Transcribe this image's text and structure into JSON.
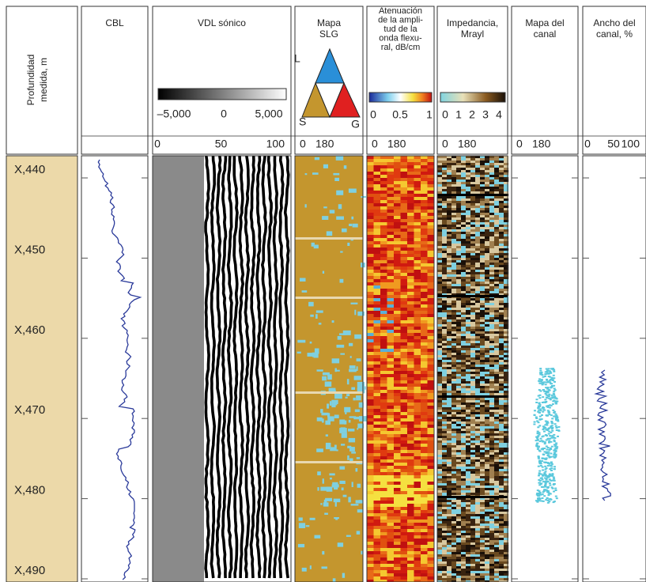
{
  "depth_track": {
    "title_lines": [
      "Profundidad",
      "medida, m"
    ]
  },
  "tracks": [
    {
      "title_lines": [
        "CBL"
      ]
    },
    {
      "title_lines": [
        "VDL sónico"
      ],
      "colorbar_labels": [
        "–5,000",
        "0",
        "5,000"
      ],
      "scale": [
        "0",
        "50",
        "100"
      ]
    },
    {
      "title_lines": [
        "Mapa",
        "SLG"
      ],
      "triangle_labels": [
        "L",
        "S",
        "G"
      ],
      "scale": [
        "0",
        "180"
      ]
    },
    {
      "title_lines": [
        "Atenuación",
        "de la ampli-",
        "tud de la",
        "onda flexu-",
        "ral, dB/cm"
      ],
      "colorbar_labels": [
        "0",
        "0.5",
        "1"
      ],
      "scale": [
        "0",
        "180"
      ]
    },
    {
      "title_lines": [
        "Impedancia,",
        "Mrayl"
      ],
      "colorbar_labels": [
        "0",
        "1",
        "2",
        "3",
        "4"
      ],
      "scale": [
        "0",
        "180"
      ]
    },
    {
      "title_lines": [
        "Mapa del",
        "canal"
      ],
      "scale": [
        "0",
        "180"
      ]
    },
    {
      "title_lines": [
        "Ancho del",
        "canal, %"
      ],
      "scale": [
        "0",
        "50",
        "100"
      ]
    }
  ],
  "depth_labels": [
    "X,440",
    "X,450",
    "X,460",
    "X,470",
    "X,480",
    "X,490"
  ]
}
